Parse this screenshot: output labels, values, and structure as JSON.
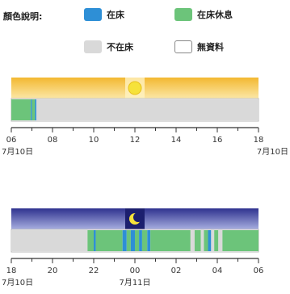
{
  "legend": {
    "title": "顏色說明:",
    "items": [
      {
        "label": "在床",
        "color": "#2e8fd6"
      },
      {
        "label": "在床休息",
        "color": "#6cc47a"
      },
      {
        "label": "不在床",
        "color": "#d9d9d9"
      },
      {
        "label": "無資料",
        "color": "#ffffff"
      }
    ]
  },
  "chart_data": [
    {
      "type": "timeline",
      "period": "day",
      "icon": "sun-icon",
      "band_color": "#f4c63d",
      "x_ticks": [
        "06",
        "08",
        "10",
        "12",
        "14",
        "16",
        "18"
      ],
      "x_range_hours": [
        6,
        18
      ],
      "start_date": "7月10日",
      "end_date": "7月10日",
      "segments": [
        {
          "start": 6.0,
          "end": 6.95,
          "state": "在床休息"
        },
        {
          "start": 6.95,
          "end": 7.0,
          "state": "在床"
        },
        {
          "start": 7.0,
          "end": 7.15,
          "state": "在床休息"
        },
        {
          "start": 7.15,
          "end": 7.22,
          "state": "在床"
        },
        {
          "start": 7.22,
          "end": 18.0,
          "state": "不在床"
        }
      ]
    },
    {
      "type": "timeline",
      "period": "night",
      "icon": "moon-icon",
      "band_color": "#3b3fa0",
      "x_ticks": [
        "18",
        "20",
        "22",
        "00",
        "02",
        "04",
        "06"
      ],
      "x_range_hours": [
        18,
        30
      ],
      "start_date": "7月10日",
      "end_date": "7月11日",
      "segments": [
        {
          "start": 18.0,
          "end": 21.7,
          "state": "不在床"
        },
        {
          "start": 21.7,
          "end": 22.0,
          "state": "在床休息"
        },
        {
          "start": 22.0,
          "end": 22.1,
          "state": "在床"
        },
        {
          "start": 22.1,
          "end": 23.4,
          "state": "在床休息"
        },
        {
          "start": 23.4,
          "end": 23.6,
          "state": "在床"
        },
        {
          "start": 23.6,
          "end": 23.8,
          "state": "在床休息"
        },
        {
          "start": 23.8,
          "end": 24.0,
          "state": "在床"
        },
        {
          "start": 24.0,
          "end": 24.2,
          "state": "在床休息"
        },
        {
          "start": 24.2,
          "end": 24.35,
          "state": "在床"
        },
        {
          "start": 24.35,
          "end": 24.6,
          "state": "在床休息"
        },
        {
          "start": 24.6,
          "end": 24.75,
          "state": "在床"
        },
        {
          "start": 24.75,
          "end": 26.7,
          "state": "在床休息"
        },
        {
          "start": 26.7,
          "end": 26.9,
          "state": "不在床"
        },
        {
          "start": 26.9,
          "end": 27.2,
          "state": "在床休息"
        },
        {
          "start": 27.2,
          "end": 27.35,
          "state": "不在床"
        },
        {
          "start": 27.35,
          "end": 27.55,
          "state": "在床休息"
        },
        {
          "start": 27.55,
          "end": 27.7,
          "state": "在床"
        },
        {
          "start": 27.7,
          "end": 27.85,
          "state": "不在床"
        },
        {
          "start": 27.85,
          "end": 28.05,
          "state": "在床休息"
        },
        {
          "start": 28.05,
          "end": 28.25,
          "state": "不在床"
        },
        {
          "start": 28.25,
          "end": 30.0,
          "state": "在床休息"
        }
      ]
    }
  ]
}
